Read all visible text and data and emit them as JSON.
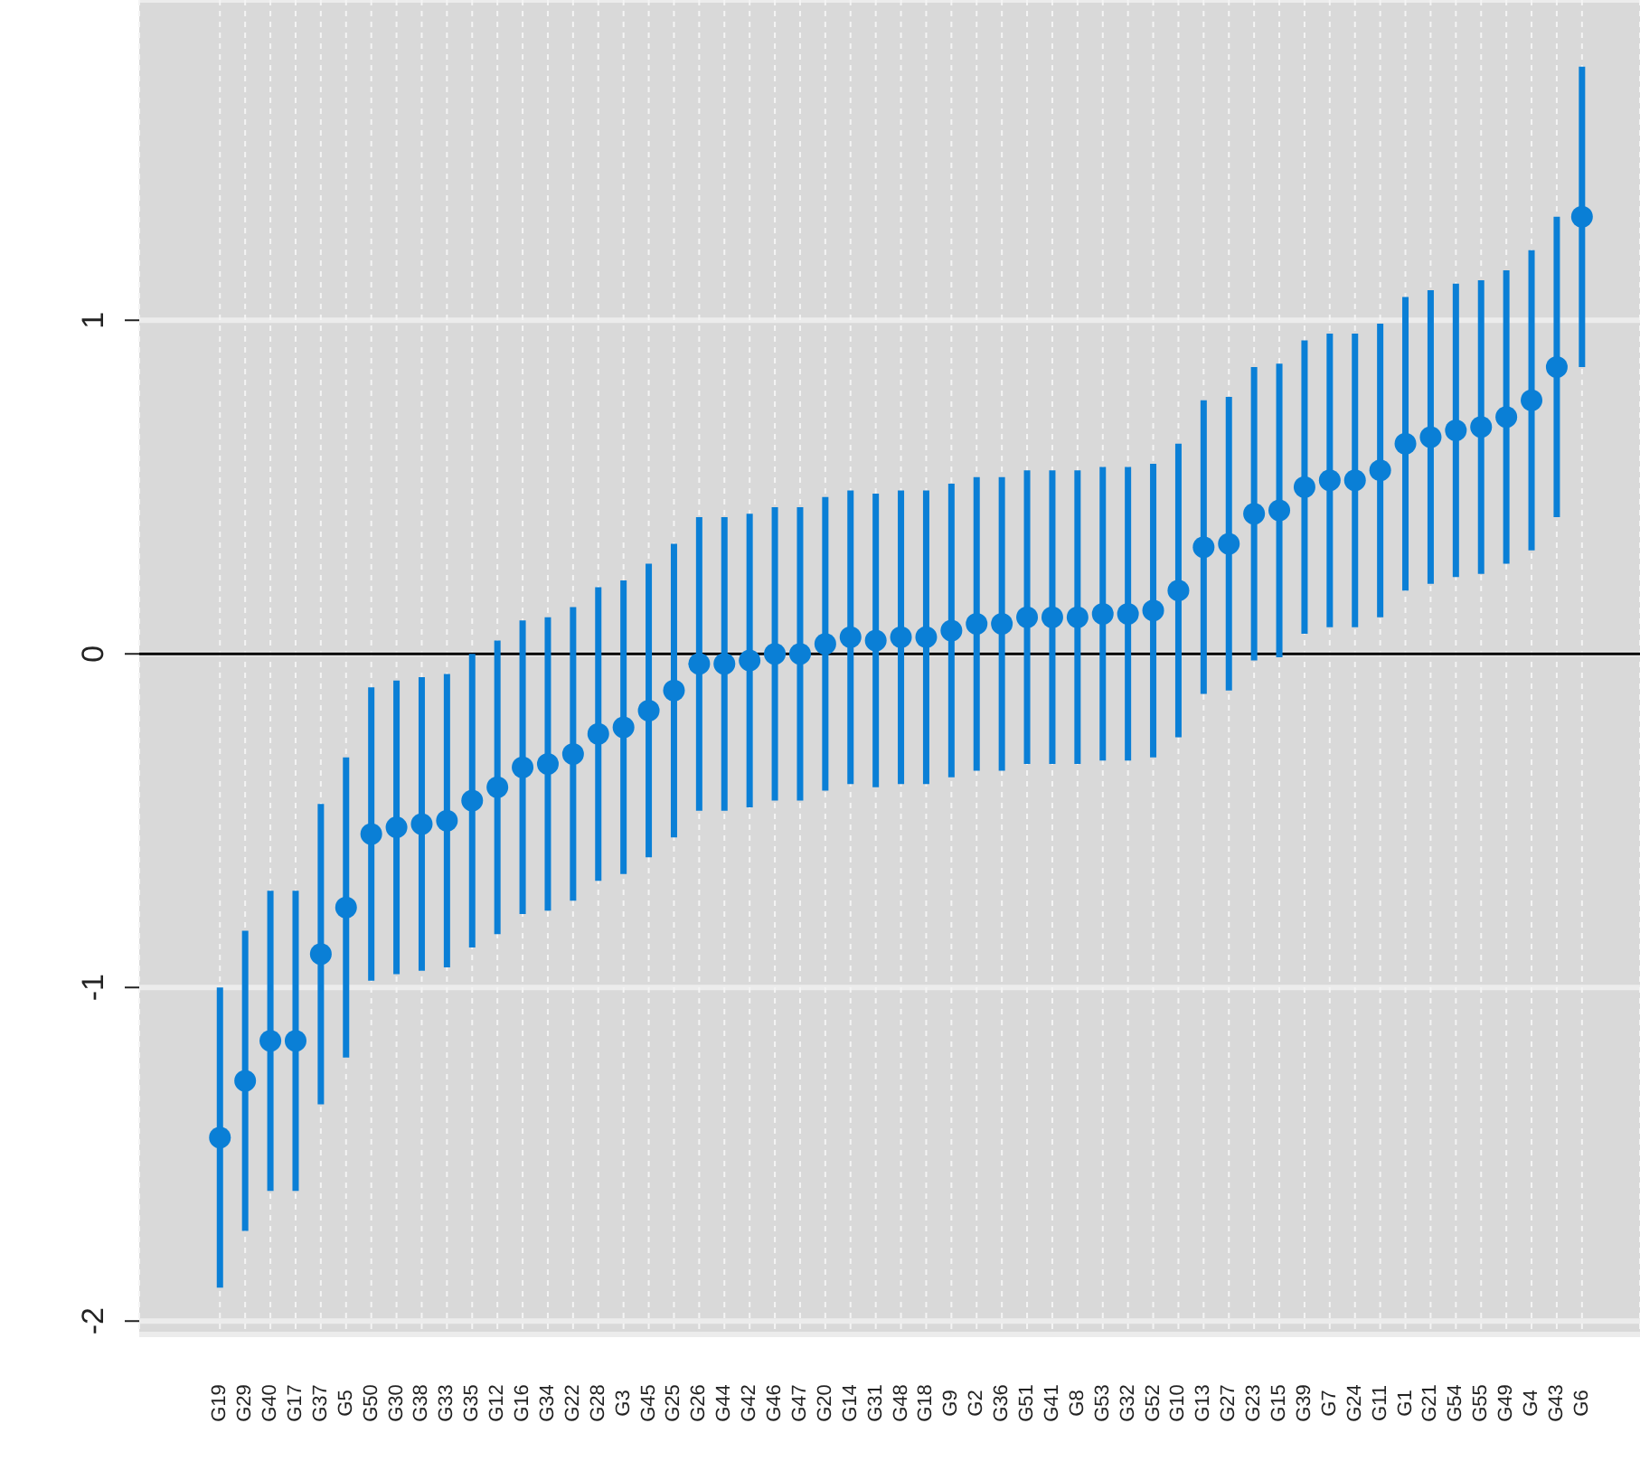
{
  "chart_data": {
    "type": "scatter",
    "categories": [
      "G19",
      "G29",
      "G40",
      "G17",
      "G37",
      "G5",
      "G50",
      "G30",
      "G38",
      "G33",
      "G35",
      "G12",
      "G16",
      "G34",
      "G22",
      "G28",
      "G3",
      "G45",
      "G25",
      "G26",
      "G44",
      "G42",
      "G46",
      "G47",
      "G20",
      "G14",
      "G31",
      "G48",
      "G18",
      "G9",
      "G2",
      "G36",
      "G51",
      "G41",
      "G8",
      "G53",
      "G32",
      "G52",
      "G10",
      "G13",
      "G27",
      "G23",
      "G15",
      "G39",
      "G7",
      "G24",
      "G11",
      "G1",
      "G21",
      "G54",
      "G55",
      "G49",
      "G4",
      "G43",
      "G6"
    ],
    "series": [
      {
        "color": "#0a7fd6",
        "values": [
          -1.45,
          -1.28,
          -1.16,
          -1.16,
          -0.9,
          -0.76,
          -0.54,
          -0.52,
          -0.51,
          -0.5,
          -0.44,
          -0.4,
          -0.34,
          -0.33,
          -0.3,
          -0.24,
          -0.22,
          -0.17,
          -0.11,
          -0.03,
          -0.03,
          -0.02,
          0,
          0,
          0.03,
          0.05,
          0.04,
          0.05,
          0.05,
          0.07,
          0.09,
          0.09,
          0.11,
          0.11,
          0.11,
          0.12,
          0.12,
          0.13,
          0.19,
          0.32,
          0.33,
          0.42,
          0.43,
          0.5,
          0.52,
          0.52,
          0.55,
          0.63,
          0.65,
          0.67,
          0.68,
          0.71,
          0.76,
          0.86,
          1.31
        ],
        "errors": [
          0.45,
          0.45,
          0.45,
          0.45,
          0.45,
          0.45,
          0.44,
          0.44,
          0.44,
          0.44,
          0.44,
          0.44,
          0.44,
          0.44,
          0.44,
          0.44,
          0.44,
          0.44,
          0.44,
          0.44,
          0.44,
          0.44,
          0.44,
          0.44,
          0.44,
          0.44,
          0.44,
          0.44,
          0.44,
          0.44,
          0.44,
          0.44,
          0.44,
          0.44,
          0.44,
          0.44,
          0.44,
          0.44,
          0.44,
          0.44,
          0.44,
          0.44,
          0.44,
          0.44,
          0.44,
          0.44,
          0.44,
          0.44,
          0.44,
          0.44,
          0.44,
          0.44,
          0.45,
          0.45,
          0.45
        ]
      }
    ],
    "ylim": [
      -2.04,
      1.96
    ],
    "yticks": [
      -2,
      -1,
      0,
      1
    ],
    "ref_lines": [
      {
        "axis": "y",
        "value": 0,
        "color": "#000000"
      }
    ],
    "grid": true,
    "marker": "circle",
    "legend": false
  }
}
